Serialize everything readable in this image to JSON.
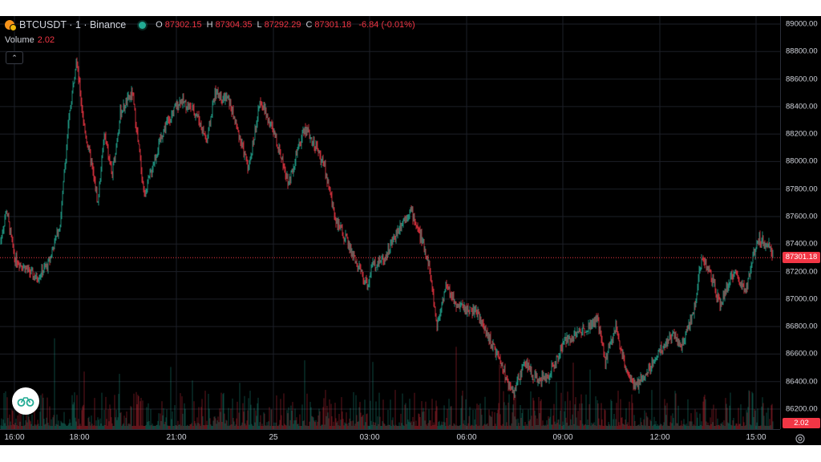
{
  "legend": {
    "symbol": "BTCUSDT · 1 · Binance",
    "ohlc": [
      {
        "k": "O",
        "v": "87302.15"
      },
      {
        "k": "H",
        "v": "87304.35"
      },
      {
        "k": "L",
        "v": "87292.29"
      },
      {
        "k": "C",
        "v": "87301.18"
      }
    ],
    "change": "-6.84 (-0.01%)"
  },
  "volume": {
    "label": "Volume",
    "value": "2.02"
  },
  "price_axis": {
    "ticks": [
      "89000.00",
      "88800.00",
      "88600.00",
      "88400.00",
      "88200.00",
      "88000.00",
      "87800.00",
      "87600.00",
      "87400.00",
      "87200.00",
      "87000.00",
      "86800.00",
      "86600.00",
      "86400.00",
      "86200.00"
    ],
    "last_price": "87301.18",
    "volume_tag": "2.02"
  },
  "time_axis": {
    "ticks": [
      "16:00",
      "18:00",
      "21:00",
      "25",
      "03:00",
      "06:00",
      "09:00",
      "12:00",
      "15:00"
    ]
  },
  "colors": {
    "up": "#22ab94",
    "down": "#f23645",
    "grid": "#1c1f27",
    "text": "#d1d4dc"
  },
  "icons": {
    "logo": "tradingview-logo-icon",
    "settings": "gear-icon",
    "collapse": "chevron-up-icon"
  },
  "chart_data": {
    "type": "candlestick",
    "symbol": "BTCUSDT",
    "interval": "1",
    "exchange": "Binance",
    "ylim": [
      86100,
      89050
    ],
    "x_ticks": [
      "16:00",
      "18:00",
      "21:00",
      "25",
      "03:00",
      "06:00",
      "09:00",
      "12:00",
      "15:00"
    ],
    "last_price": 87301.18,
    "path_keypoints": [
      [
        0,
        87400
      ],
      [
        8,
        87650
      ],
      [
        18,
        87300
      ],
      [
        45,
        87150
      ],
      [
        60,
        87250
      ],
      [
        75,
        87550
      ],
      [
        85,
        88250
      ],
      [
        95,
        88750
      ],
      [
        105,
        88250
      ],
      [
        115,
        87950
      ],
      [
        122,
        87700
      ],
      [
        130,
        88200
      ],
      [
        140,
        87900
      ],
      [
        150,
        88350
      ],
      [
        165,
        88500
      ],
      [
        180,
        87750
      ],
      [
        192,
        88000
      ],
      [
        205,
        88250
      ],
      [
        225,
        88450
      ],
      [
        245,
        88350
      ],
      [
        258,
        88150
      ],
      [
        268,
        88500
      ],
      [
        285,
        88450
      ],
      [
        295,
        88250
      ],
      [
        310,
        87950
      ],
      [
        325,
        88450
      ],
      [
        345,
        88150
      ],
      [
        360,
        87850
      ],
      [
        380,
        88250
      ],
      [
        395,
        88100
      ],
      [
        405,
        87950
      ],
      [
        420,
        87550
      ],
      [
        435,
        87400
      ],
      [
        445,
        87250
      ],
      [
        458,
        87100
      ],
      [
        465,
        87250
      ],
      [
        480,
        87300
      ],
      [
        500,
        87550
      ],
      [
        512,
        87650
      ],
      [
        525,
        87450
      ],
      [
        535,
        87250
      ],
      [
        545,
        86800
      ],
      [
        556,
        87100
      ],
      [
        570,
        86950
      ],
      [
        595,
        86900
      ],
      [
        615,
        86650
      ],
      [
        630,
        86450
      ],
      [
        640,
        86300
      ],
      [
        655,
        86550
      ],
      [
        670,
        86400
      ],
      [
        685,
        86450
      ],
      [
        705,
        86700
      ],
      [
        720,
        86750
      ],
      [
        745,
        86850
      ],
      [
        755,
        86550
      ],
      [
        768,
        86800
      ],
      [
        778,
        86550
      ],
      [
        792,
        86350
      ],
      [
        805,
        86450
      ],
      [
        820,
        86600
      ],
      [
        840,
        86750
      ],
      [
        850,
        86650
      ],
      [
        865,
        86900
      ],
      [
        875,
        87300
      ],
      [
        885,
        87200
      ],
      [
        898,
        86950
      ],
      [
        915,
        87200
      ],
      [
        930,
        87050
      ],
      [
        945,
        87450
      ],
      [
        958,
        87400
      ],
      [
        964,
        87300
      ]
    ]
  }
}
